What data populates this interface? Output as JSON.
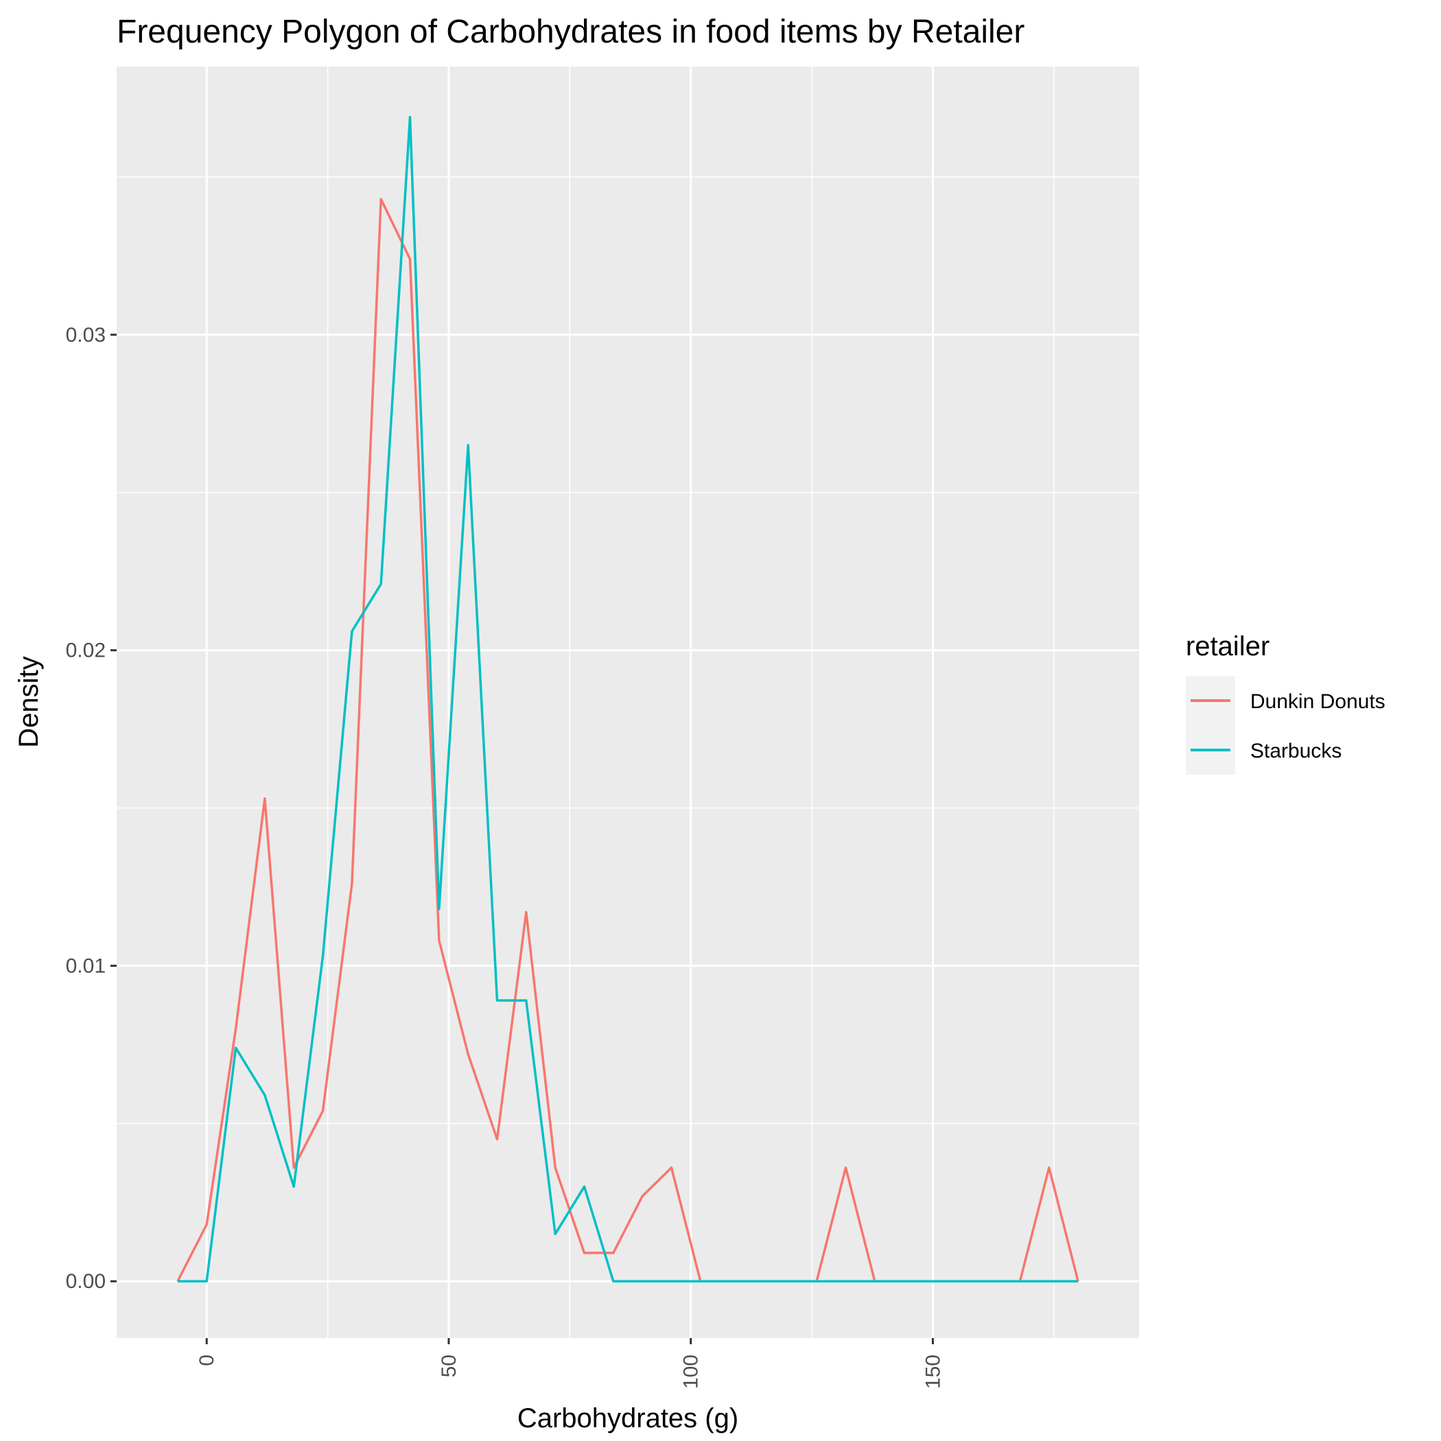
{
  "chart_data": {
    "type": "line",
    "title": "Frequency Polygon of Carbohydrates in food items by Retailer",
    "xlabel": "Carbohydrates (g)",
    "ylabel": "Density",
    "xlim": [
      -18.6,
      192.6
    ],
    "ylim": [
      -0.0018,
      0.0385
    ],
    "x_ticks": [
      0,
      50,
      100,
      150
    ],
    "x_tick_labels": [
      "0",
      "50",
      "100",
      "150"
    ],
    "y_ticks": [
      0,
      0.01,
      0.02,
      0.03
    ],
    "y_tick_labels": [
      "0.00",
      "0.01",
      "0.02",
      "0.03"
    ],
    "grid": true,
    "legend_position": "right",
    "legend_title": "retailer",
    "series": [
      {
        "name": "Dunkin Donuts",
        "color": "#F8766D",
        "x": [
          -6,
          0,
          6,
          12,
          18,
          24,
          30,
          36,
          42,
          48,
          54,
          60,
          66,
          72,
          78,
          84,
          90,
          96,
          102,
          108,
          114,
          120,
          126,
          132,
          138,
          144,
          150,
          156,
          162,
          168,
          174,
          180
        ],
        "y": [
          0.0,
          0.0018,
          0.008,
          0.0153,
          0.0036,
          0.0054,
          0.0126,
          0.0343,
          0.0324,
          0.0108,
          0.0072,
          0.0045,
          0.0117,
          0.0036,
          0.0009,
          0.0009,
          0.0027,
          0.0036,
          0.0,
          0.0,
          0.0,
          0.0,
          0.0,
          0.0036,
          0.0,
          0.0,
          0.0,
          0.0,
          0.0,
          0.0,
          0.0036,
          0.0
        ]
      },
      {
        "name": "Starbucks",
        "color": "#00BFC4",
        "x": [
          -6,
          0,
          6,
          12,
          18,
          24,
          30,
          36,
          42,
          48,
          54,
          60,
          66,
          72,
          78,
          84,
          90,
          96,
          102,
          108,
          114,
          120,
          126,
          132,
          138,
          144,
          150,
          156,
          162,
          168,
          174,
          180
        ],
        "y": [
          0.0,
          0.0,
          0.0074,
          0.0059,
          0.003,
          0.0103,
          0.0206,
          0.0221,
          0.0369,
          0.0118,
          0.0265,
          0.0089,
          0.0089,
          0.0015,
          0.003,
          0.0,
          0.0,
          0.0,
          0.0,
          0.0,
          0.0,
          0.0,
          0.0,
          0.0,
          0.0,
          0.0,
          0.0,
          0.0,
          0.0,
          0.0,
          0.0,
          0.0
        ]
      }
    ]
  }
}
